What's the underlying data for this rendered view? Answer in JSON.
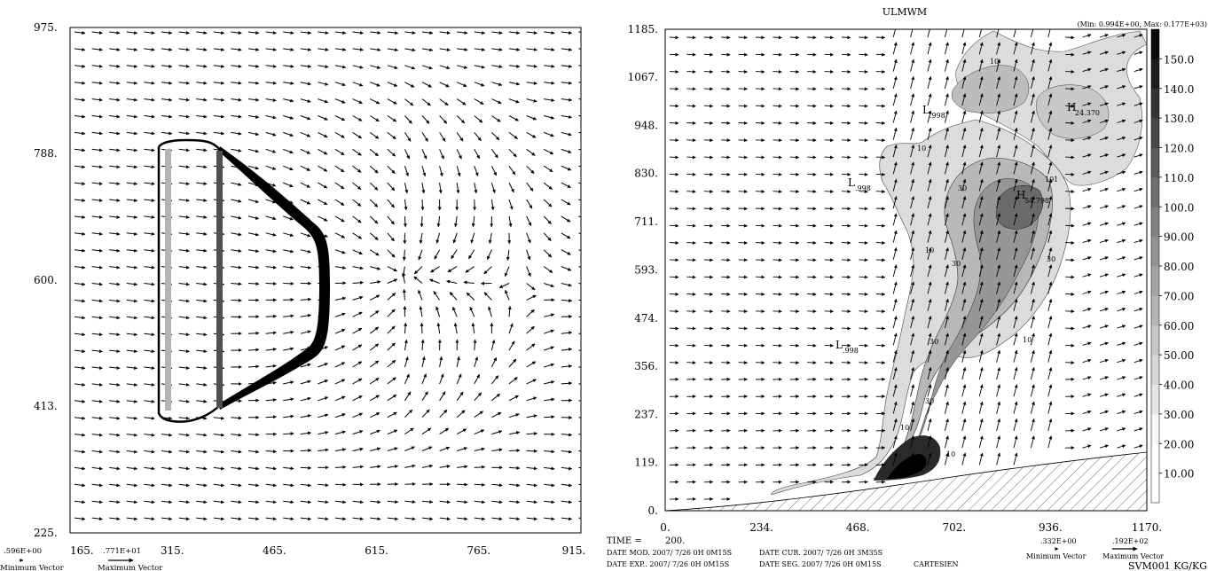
{
  "chart_data": [
    {
      "type": "vector_field",
      "panel": "left",
      "x_ticks": [
        "165.",
        "315.",
        "465.",
        "615.",
        "765.",
        "915."
      ],
      "y_ticks": [
        "975.",
        "788.",
        "600.",
        "413.",
        "225."
      ],
      "xlim": [
        165,
        915
      ],
      "ylim": [
        225,
        975
      ],
      "grid": false,
      "shape": {
        "type": "closed-contour",
        "x_range": [
          315,
          544
        ],
        "y_range": [
          413,
          788
        ],
        "inner_bar_light_x": 315,
        "inner_bar_dark_x": 390
      },
      "vector_legend": {
        "min_value": ".596E+00",
        "max_value": ".771E+01",
        "min_label": "Minimum Vector",
        "max_label": "Maximum Vector"
      }
    },
    {
      "type": "filled_contour_with_vectors",
      "panel": "right",
      "title": "ULMWM",
      "min_max_text": "(Min: 0.994E+00, Max: 0.177E+03)",
      "x_ticks": [
        "0.",
        "234.",
        "468.",
        "702.",
        "936.",
        "1170."
      ],
      "y_ticks": [
        "0.",
        "119.",
        "237.",
        "356.",
        "474.",
        "593.",
        "711.",
        "830.",
        "948.",
        "1067.",
        "1185."
      ],
      "xlim": [
        0,
        1170
      ],
      "ylim": [
        0,
        1185
      ],
      "colorbar": {
        "levels": [
          "10.00",
          "20.00",
          "30.00",
          "40.00",
          "50.00",
          "60.00",
          "70.00",
          "80.00",
          "90.00",
          "100.0",
          "110.0",
          "120.0",
          "130.0",
          "140.0",
          "150.0"
        ],
        "range": [
          0,
          160
        ],
        "colors": [
          "#ffffff",
          "#ffffff",
          "#f7f7f7",
          "#e6e6e6",
          "#d6d6d6",
          "#c6c6c6",
          "#b5b5b5",
          "#a4a4a4",
          "#939393",
          "#818181",
          "#6e6e6e",
          "#5b5b5b",
          "#474747",
          "#333333",
          "#1e1e1e",
          "#0a0a0a"
        ]
      },
      "contour_labels": [
        "10",
        "10",
        "10",
        "10",
        "10",
        "10",
        "30",
        "30",
        "30",
        "30",
        "30",
        "101"
      ],
      "extrema": [
        {
          "kind": "L",
          "value": ".998"
        },
        {
          "kind": "L",
          "value": ".998"
        },
        {
          "kind": "L",
          "value": ".998"
        },
        {
          "kind": "H",
          "value": "24.370"
        },
        {
          "kind": "H",
          "value": "54.798"
        }
      ],
      "info": {
        "time_label": "TIME =",
        "time_value": "200.",
        "date_mod": "DATE MOD. 2007/ 7/26    0H 0M15S",
        "date_cur": "DATE CUR. 2007/ 7/26    0H 3M35S",
        "date_exp": "DATE EXP.. 2007/ 7/26    0H 0M15S",
        "date_seg": "DATE SEG. 2007/ 7/26    0H 0M15S",
        "projection": "CARTESIEN",
        "vector_min_value": ".332E+00",
        "vector_max_value": ".192E+02",
        "vector_min_label": "Minimum Vector",
        "vector_max_label": "Maximum Vector",
        "field_units": "SVM001 KG/KG"
      }
    }
  ]
}
